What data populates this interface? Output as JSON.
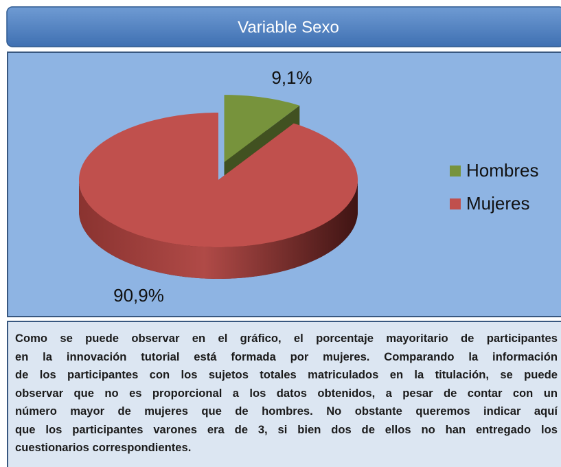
{
  "chart_data": {
    "type": "pie",
    "title": "Variable Sexo",
    "categories": [
      "Hombres",
      "Mujeres"
    ],
    "values": [
      9.1,
      90.9
    ],
    "value_labels": [
      "9,1%",
      "90,9%"
    ],
    "colors": [
      "#77933c",
      "#c0504d"
    ],
    "legend": "right"
  },
  "description": {
    "lines": [
      "Como se puede observar en el gráfico, el porcentaje mayoritario de participantes",
      "en la innovación tutorial está formada por mujeres. Comparando la información",
      "de los participantes con los sujetos totales matriculados en la titulación, se puede",
      "observar que no es proporcional a los datos obtenidos, a pesar de contar con un",
      "número mayor de mujeres que de hombres. No obstante queremos indicar aquí",
      "que los participantes varones era de 3, si bien dos de ellos no han entregado los",
      "cuestionarios correspondientes."
    ]
  }
}
